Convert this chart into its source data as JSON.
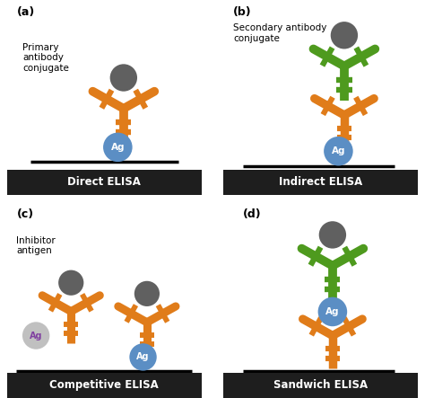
{
  "background_color": "#ffffff",
  "label_bar_color": "#1e1e1e",
  "label_text_color": "#ffffff",
  "orange_color": "#e07c1a",
  "green_color": "#4e9a1e",
  "blue_ag_color": "#5b8ec4",
  "gray_ball_color": "#606060",
  "light_gray_ag_color": "#c0c0c0",
  "purple_ag_text": "#8040a0",
  "titles": [
    "Direct ELISA",
    "Indirect ELISA",
    "Competitive ELISA",
    "Sandwich ELISA"
  ]
}
